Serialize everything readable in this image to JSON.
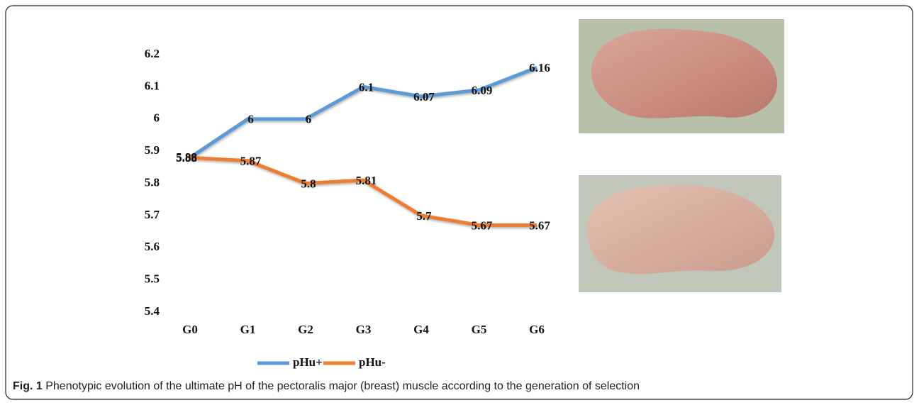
{
  "chart_data": {
    "type": "line",
    "categories": [
      "G0",
      "G1",
      "G2",
      "G3",
      "G4",
      "G5",
      "G6"
    ],
    "series": [
      {
        "name": "pHu+",
        "color": "#5b9bd5",
        "values": [
          5.88,
          6,
          6,
          6.1,
          6.07,
          6.09,
          6.16
        ]
      },
      {
        "name": "pHu-",
        "color": "#ed7d31",
        "values": [
          5.88,
          5.87,
          5.8,
          5.81,
          5.7,
          5.67,
          5.67
        ]
      }
    ],
    "ylim": [
      5.4,
      6.2
    ],
    "yticks": [
      5.4,
      5.5,
      5.6,
      5.7,
      5.8,
      5.9,
      6,
      6.1,
      6.2
    ],
    "grid": false,
    "legend": "bottom"
  },
  "caption": {
    "label": "Fig. 1",
    "text": "Phenotypic evolution of the ultimate pH of the pectoralis major (breast) muscle according to the generation of selection"
  }
}
